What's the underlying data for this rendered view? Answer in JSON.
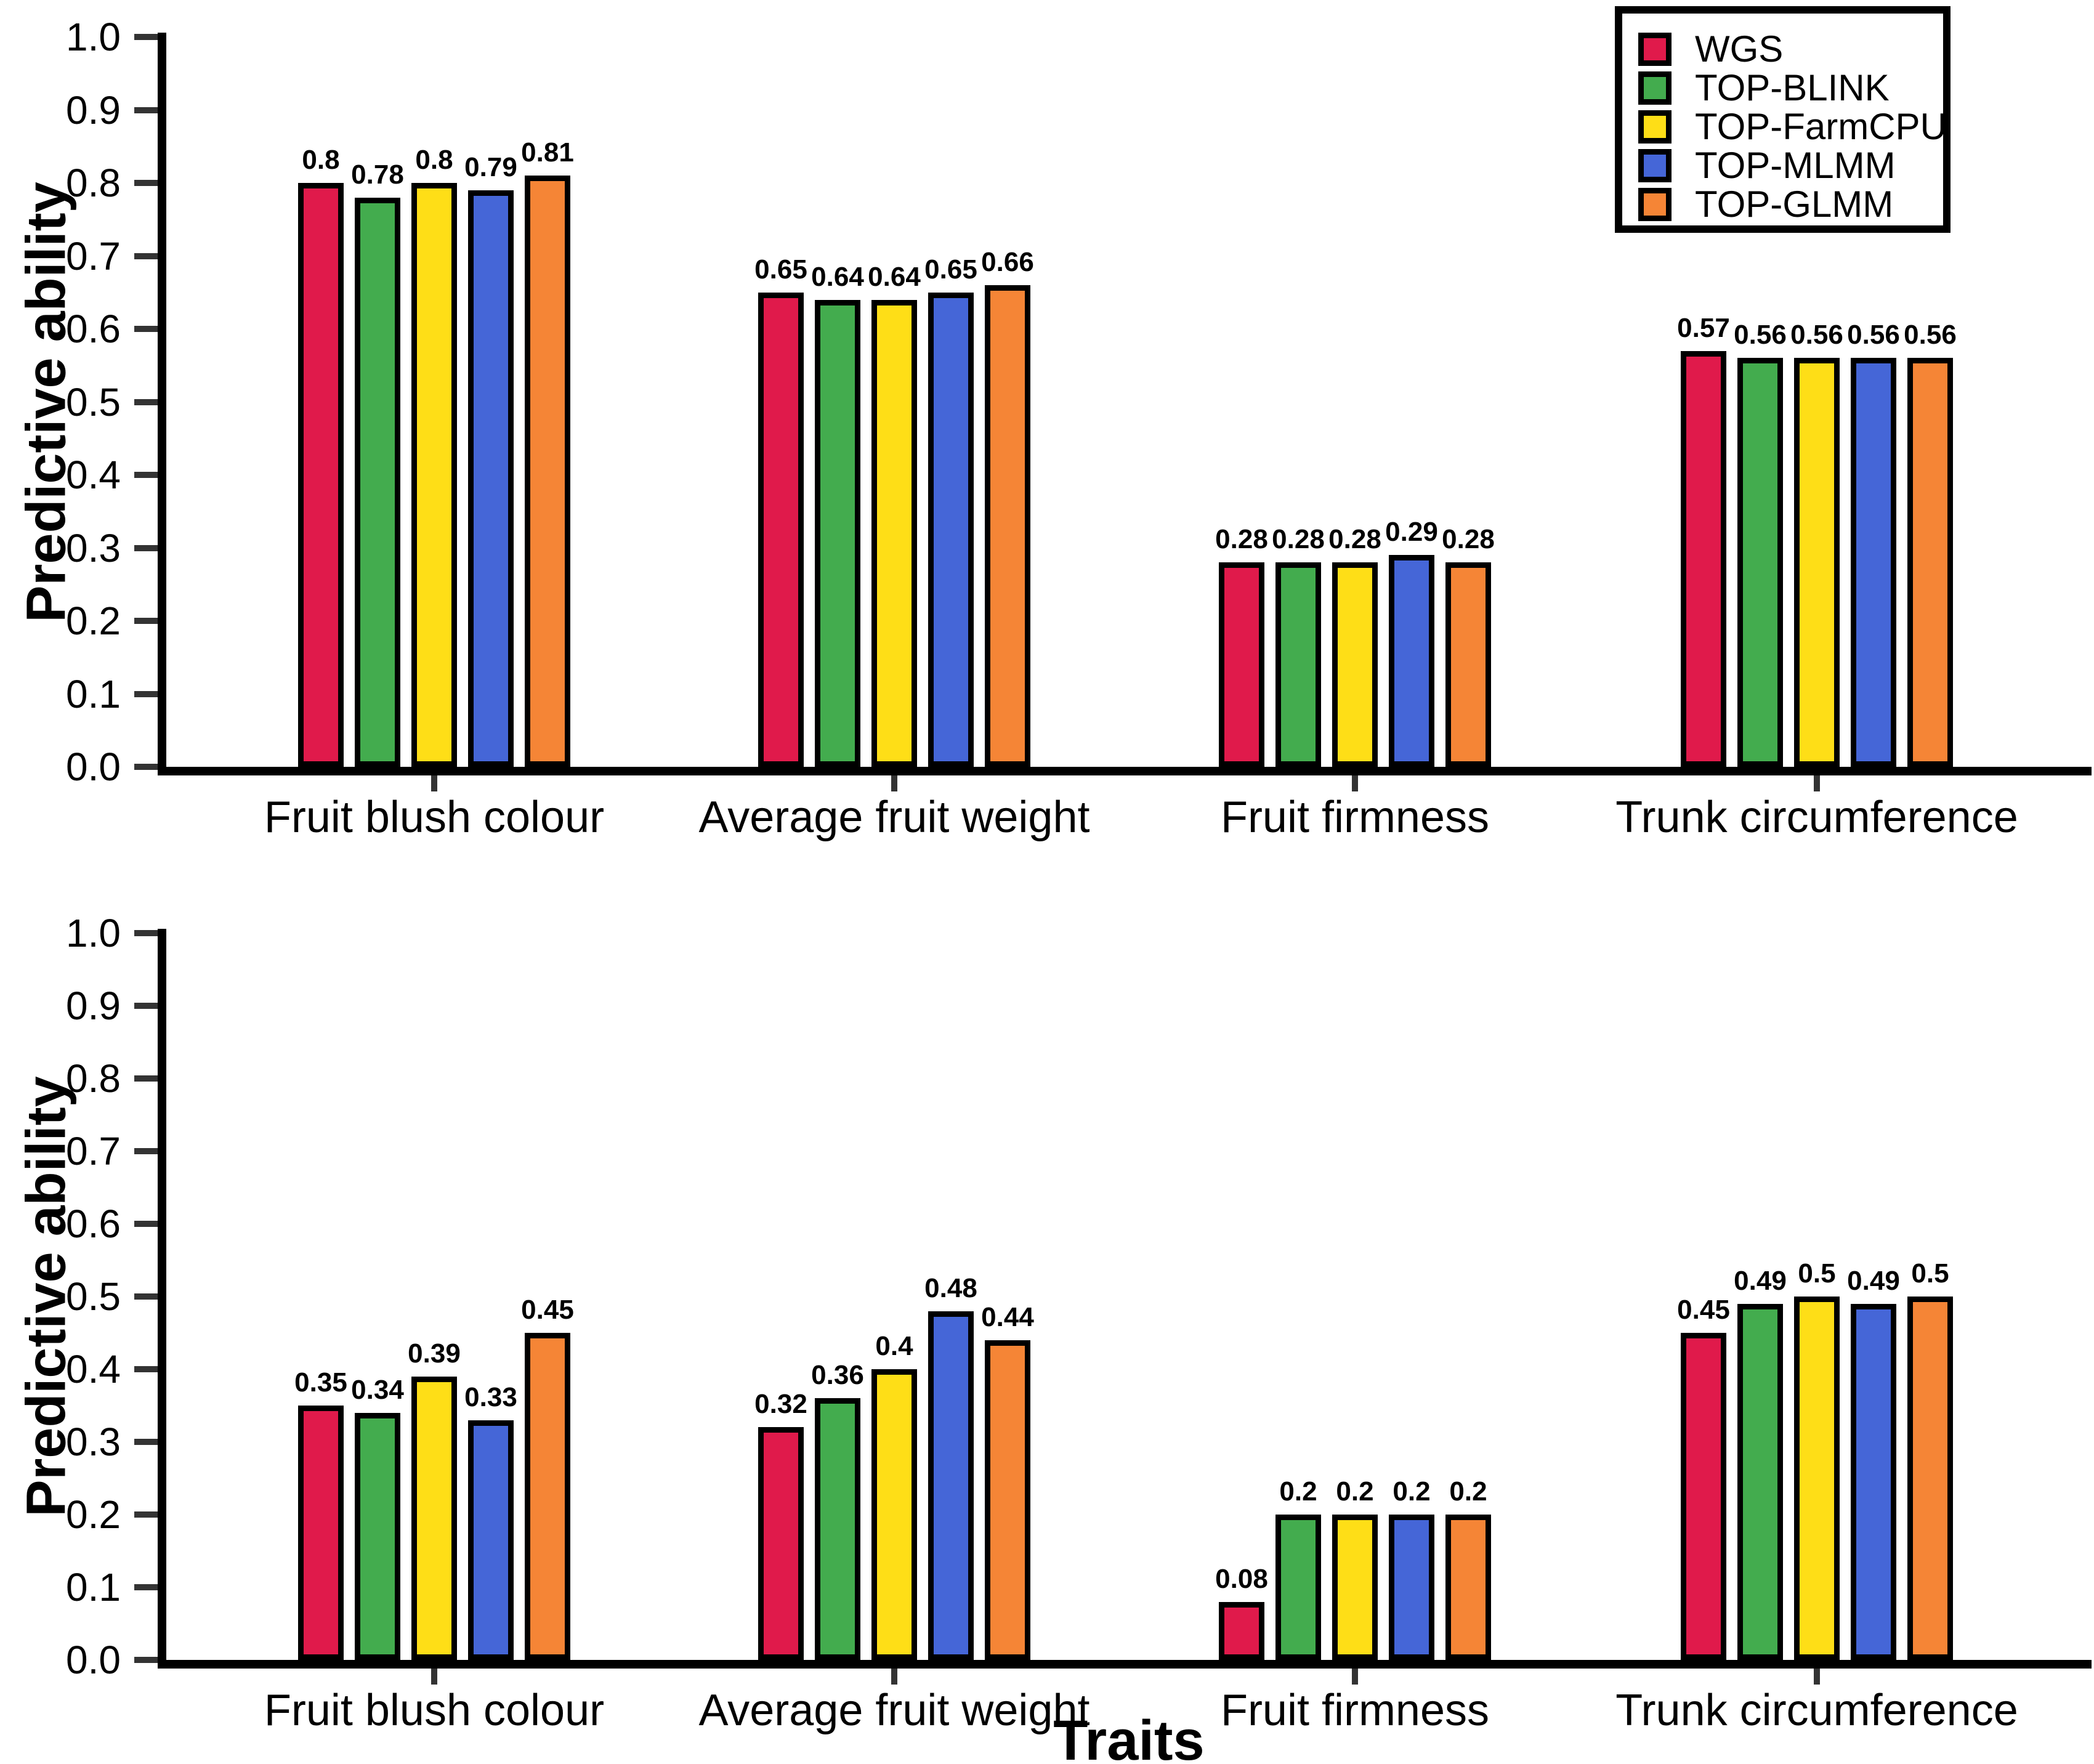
{
  "figure_title": "",
  "legend": {
    "items": [
      {
        "label": "WGS",
        "color": "#E01A4B"
      },
      {
        "label": "TOP-BLINK",
        "color": "#43AC4E"
      },
      {
        "label": "TOP-FarmCPU",
        "color": "#FEDE17"
      },
      {
        "label": "TOP-MLMM",
        "color": "#4566D7"
      },
      {
        "label": "TOP-GLMM",
        "color": "#F58536"
      }
    ]
  },
  "chart_data": [
    {
      "type": "bar",
      "panel": "top",
      "title": "",
      "ylabel": "Predictive ability",
      "xlabel": "",
      "ylim": [
        0.0,
        1.0
      ],
      "y_ticks": [
        "0.0",
        "0.1",
        "0.2",
        "0.3",
        "0.4",
        "0.5",
        "0.6",
        "0.7",
        "0.8",
        "0.9",
        "1.0"
      ],
      "grid": false,
      "legend_position": "top-right",
      "categories": [
        "Fruit blush colour",
        "Average fruit weight",
        "Fruit firmness",
        "Trunk circumference"
      ],
      "series": [
        {
          "name": "WGS",
          "values": [
            0.8,
            0.65,
            0.28,
            0.57
          ]
        },
        {
          "name": "TOP-BLINK",
          "values": [
            0.78,
            0.64,
            0.28,
            0.56
          ]
        },
        {
          "name": "TOP-FarmCPU",
          "values": [
            0.8,
            0.64,
            0.28,
            0.56
          ]
        },
        {
          "name": "TOP-MLMM",
          "values": [
            0.79,
            0.65,
            0.29,
            0.56
          ]
        },
        {
          "name": "TOP-GLMM",
          "values": [
            0.81,
            0.66,
            0.28,
            0.56
          ]
        }
      ]
    },
    {
      "type": "bar",
      "panel": "bottom",
      "title": "",
      "ylabel": "Predictive ability",
      "xlabel": "Traits",
      "ylim": [
        0.0,
        1.0
      ],
      "y_ticks": [
        "0.0",
        "0.1",
        "0.2",
        "0.3",
        "0.4",
        "0.5",
        "0.6",
        "0.7",
        "0.8",
        "0.9",
        "1.0"
      ],
      "grid": false,
      "legend_position": "none",
      "categories": [
        "Fruit blush colour",
        "Average fruit weight",
        "Fruit firmness",
        "Trunk circumference"
      ],
      "series": [
        {
          "name": "WGS",
          "values": [
            0.35,
            0.32,
            0.08,
            0.45
          ]
        },
        {
          "name": "TOP-BLINK",
          "values": [
            0.34,
            0.36,
            0.2,
            0.49
          ]
        },
        {
          "name": "TOP-FarmCPU",
          "values": [
            0.39,
            0.4,
            0.2,
            0.5
          ]
        },
        {
          "name": "TOP-MLMM",
          "values": [
            0.33,
            0.48,
            0.2,
            0.49
          ]
        },
        {
          "name": "TOP-GLMM",
          "values": [
            0.45,
            0.44,
            0.2,
            0.5
          ]
        }
      ]
    }
  ]
}
